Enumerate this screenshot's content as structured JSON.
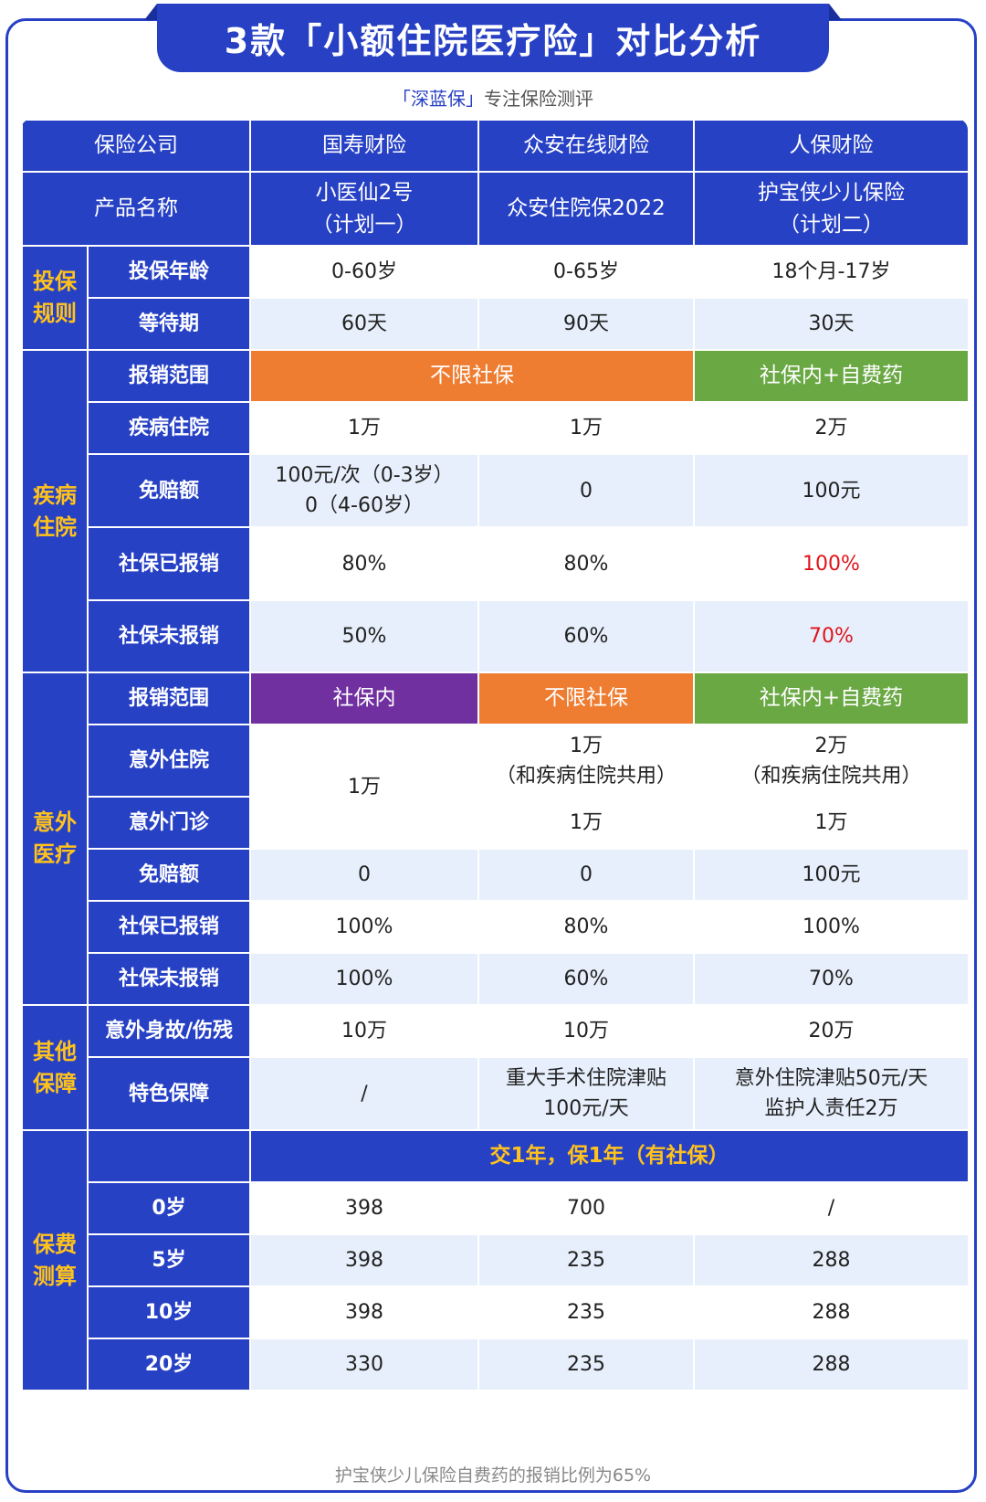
{
  "title": "3款「小额住院医疗险」对比分析",
  "subtitle": {
    "brand": "「深蓝保」",
    "text": "专注保险测评"
  },
  "header": {
    "company_label": "保险公司",
    "companies": [
      "国寿财险",
      "众安在线财险",
      "人保财险"
    ],
    "product_label": "产品名称",
    "products": [
      {
        "line1": "小医仙2号",
        "line2": "（计划一）"
      },
      {
        "line1": "众安住院保2022",
        "line2": ""
      },
      {
        "line1": "护宝侠少儿保险",
        "line2": "（计划二）"
      }
    ]
  },
  "sections": {
    "rules": "投保规则",
    "disease": "疾病住院",
    "accident": "意外医疗",
    "other": "其他保障",
    "premium": "保费测算"
  },
  "rules": {
    "age": {
      "label": "投保年龄",
      "values": [
        "0-60岁",
        "0-65岁",
        "18个月-17岁"
      ]
    },
    "waiting": {
      "label": "等待期",
      "values": [
        "60天",
        "90天",
        "30天"
      ]
    }
  },
  "disease": {
    "scope": {
      "label": "报销范围",
      "merged": "不限社保",
      "third": "社保内+自费药"
    },
    "hospital": {
      "label": "疾病住院",
      "values": [
        "1万",
        "1万",
        "2万"
      ]
    },
    "deductible": {
      "label": "免赔额",
      "v1_line1": "100元/次（0-3岁）",
      "v1_line2": "0（4-60岁）",
      "v2": "0",
      "v3": "100元"
    },
    "si_paid": {
      "label": "社保已报销",
      "values": [
        "80%",
        "80%",
        "100%"
      ]
    },
    "si_unpaid": {
      "label": "社保未报销",
      "values": [
        "50%",
        "60%",
        "70%"
      ]
    }
  },
  "accident": {
    "scope": {
      "label": "报销范围",
      "values": [
        "社保内",
        "不限社保",
        "社保内+自费药"
      ]
    },
    "hospital": {
      "label": "意外住院",
      "v1": "1万",
      "v2_line1": "1万",
      "v2_line2": "（和疾病住院共用）",
      "v3_line1": "2万",
      "v3_line2": "（和疾病住院共用）"
    },
    "outpatient": {
      "label": "意外门诊",
      "values": [
        "1万",
        "1万"
      ]
    },
    "deductible": {
      "label": "免赔额",
      "values": [
        "0",
        "0",
        "100元"
      ]
    },
    "si_paid": {
      "label": "社保已报销",
      "values": [
        "100%",
        "80%",
        "100%"
      ]
    },
    "si_unpaid": {
      "label": "社保未报销",
      "values": [
        "100%",
        "60%",
        "70%"
      ]
    }
  },
  "other": {
    "death": {
      "label": "意外身故/伤残",
      "values": [
        "10万",
        "10万",
        "20万"
      ]
    },
    "special": {
      "label": "特色保障",
      "v1": "/",
      "v2_line1": "重大手术住院津贴",
      "v2_line2": "100元/天",
      "v3_line1": "意外住院津贴50元/天",
      "v3_line2": "监护人责任2万"
    }
  },
  "premium": {
    "banner": "交1年，保1年（有社保）",
    "rows": [
      {
        "label": "0岁",
        "values": [
          "398",
          "700",
          "/"
        ]
      },
      {
        "label": "5岁",
        "values": [
          "398",
          "235",
          "288"
        ]
      },
      {
        "label": "10岁",
        "values": [
          "398",
          "235",
          "288"
        ]
      },
      {
        "label": "20岁",
        "values": [
          "330",
          "235",
          "288"
        ]
      }
    ]
  },
  "footnote": "护宝侠少儿保险自费药的报销比例为65%",
  "colors": {
    "primary": "#2741c5",
    "section_text": "#ffc21c",
    "orange": "#ee7d31",
    "green": "#6aa844",
    "purple": "#7030a0",
    "highlight_red": "#e0141b",
    "alt_row": "#e6effb"
  }
}
